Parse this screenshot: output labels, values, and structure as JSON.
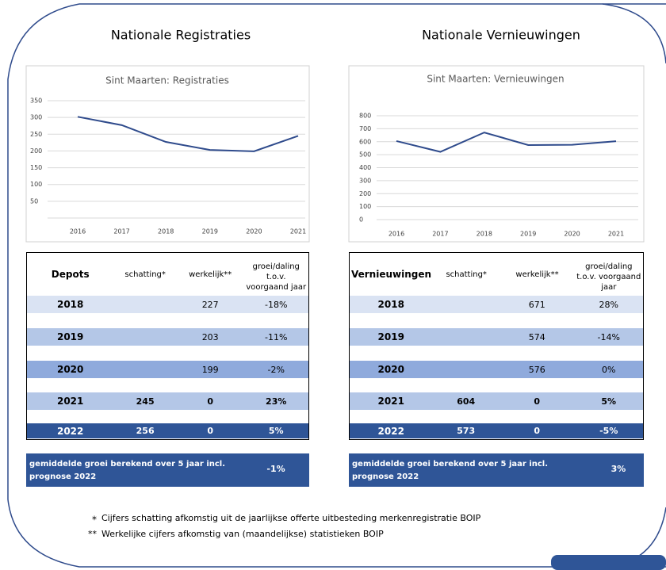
{
  "headings": [
    "Nationale Registraties",
    "Nationale Vernieuwingen"
  ],
  "chart_data": [
    {
      "type": "line",
      "title": "Sint Maarten: Registraties",
      "categories": [
        "2016",
        "2017",
        "2018",
        "2019",
        "2020",
        "2021"
      ],
      "values": [
        302,
        277,
        227,
        203,
        199,
        245
      ],
      "color": "#2f4b8c",
      "ylim": [
        0,
        350
      ],
      "yticks": [
        50,
        100,
        150,
        200,
        250,
        300,
        350
      ],
      "grid": true
    },
    {
      "type": "line",
      "title": "Sint Maarten: Vernieuwingen",
      "categories": [
        "2016",
        "2017",
        "2018",
        "2019",
        "2020",
        "2021"
      ],
      "values": [
        605,
        522,
        671,
        574,
        576,
        604
      ],
      "color": "#2f4b8c",
      "ylim": [
        0,
        800
      ],
      "yticks": [
        0,
        100,
        200,
        300,
        400,
        500,
        600,
        700,
        800
      ],
      "grid": true
    }
  ],
  "tables": [
    {
      "header": [
        "Depots",
        "schatting*",
        "werkelijk**",
        "groei/daling t.o.v. voorgaand jaar"
      ],
      "rows": [
        {
          "year": "2018",
          "werkelijk": "227",
          "groei": "-18%"
        },
        {
          "year": "2019",
          "werkelijk": "203",
          "groei": "-11%"
        },
        {
          "year": "2020",
          "werkelijk": "199",
          "groei": "-2%"
        },
        {
          "year": "2021",
          "schatting": "245",
          "werkelijk": "0",
          "groei": "23%"
        },
        {
          "year": "2022",
          "schatting": "256",
          "werkelijk": "0",
          "groei": "5%"
        }
      ]
    },
    {
      "header": [
        "Vernieuwingen",
        "schatting*",
        "werkelijk**",
        "groei/daling t.o.v. voorgaand jaar"
      ],
      "rows": [
        {
          "year": "2018",
          "werkelijk": "671",
          "groei": "28%"
        },
        {
          "year": "2019",
          "werkelijk": "574",
          "groei": "-14%"
        },
        {
          "year": "2020",
          "werkelijk": "576",
          "groei": "0%"
        },
        {
          "year": "2021",
          "schatting": "604",
          "werkelijk": "0",
          "groei": "5%"
        },
        {
          "year": "2022",
          "schatting": "573",
          "werkelijk": "0",
          "groei": "-5%"
        }
      ]
    }
  ],
  "summary": [
    {
      "text": "gemiddelde  groei berekend over 5 jaar incl. prognose 2022",
      "value": "-1%"
    },
    {
      "text": "gemiddelde  groei berekend over 5 jaar incl. prognose 2022",
      "value": "3%"
    }
  ],
  "footnotes": [
    {
      "marker": "*",
      "text": "Cijfers schatting afkomstig uit de jaarlijkse offerte uitbesteding merkenregistratie BOIP"
    },
    {
      "marker": "**",
      "text": "Werkelijke cijfers afkomstig van (maandelijkse) statistieken BOIP"
    }
  ]
}
